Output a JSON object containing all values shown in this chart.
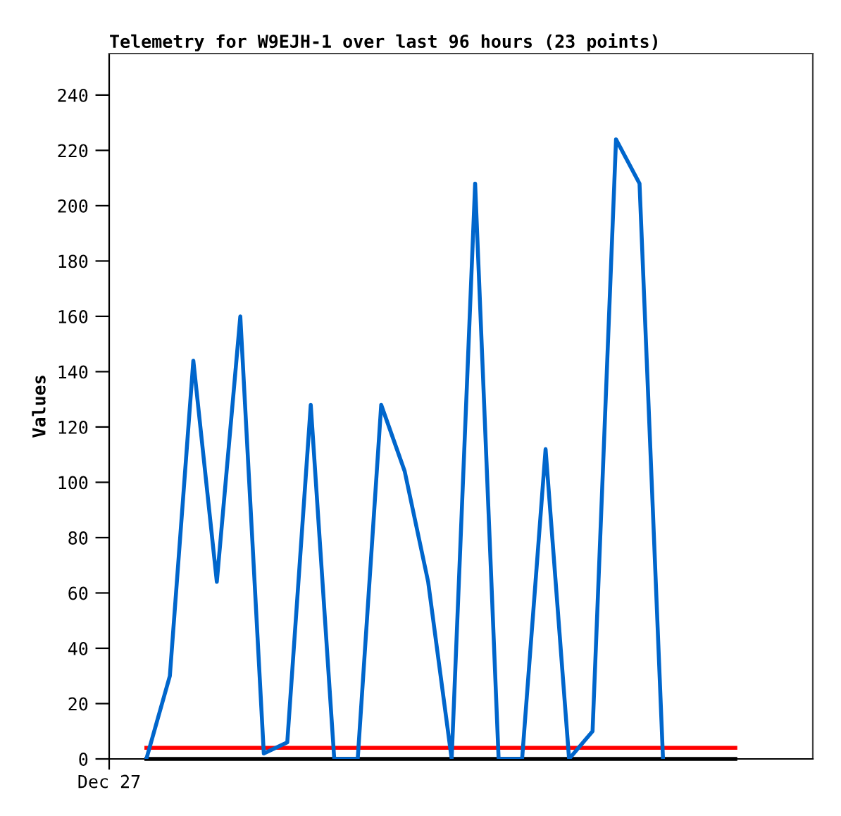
{
  "chart_data": {
    "type": "line",
    "title": "Telemetry for W9EJH-1 over last 96 hours (23 points)",
    "ylabel": "Values",
    "categories": [
      null,
      null,
      null,
      null,
      null,
      null,
      null,
      null,
      null,
      null,
      null,
      null,
      null,
      null,
      null,
      null,
      null,
      null,
      null,
      null,
      null,
      null,
      null
    ],
    "annotations": [
      "Dec 27"
    ],
    "ylim": [
      0,
      255
    ],
    "yticks": [
      0,
      20,
      40,
      60,
      80,
      100,
      120,
      140,
      160,
      180,
      200,
      220,
      240
    ],
    "grid": false,
    "marker": "none",
    "line_style": "solid",
    "ref_lines": [
      {
        "axis": "y",
        "value": 0,
        "color": "#000000"
      },
      {
        "axis": "y",
        "value": 4,
        "color": "#ff0000"
      }
    ],
    "series": [
      {
        "color": "#0066cc",
        "values": [
          0,
          30,
          144,
          64,
          160,
          2,
          6,
          128,
          0,
          0,
          128,
          104,
          64,
          0,
          208,
          0,
          0,
          112,
          0,
          10,
          224,
          208,
          0
        ]
      }
    ]
  }
}
